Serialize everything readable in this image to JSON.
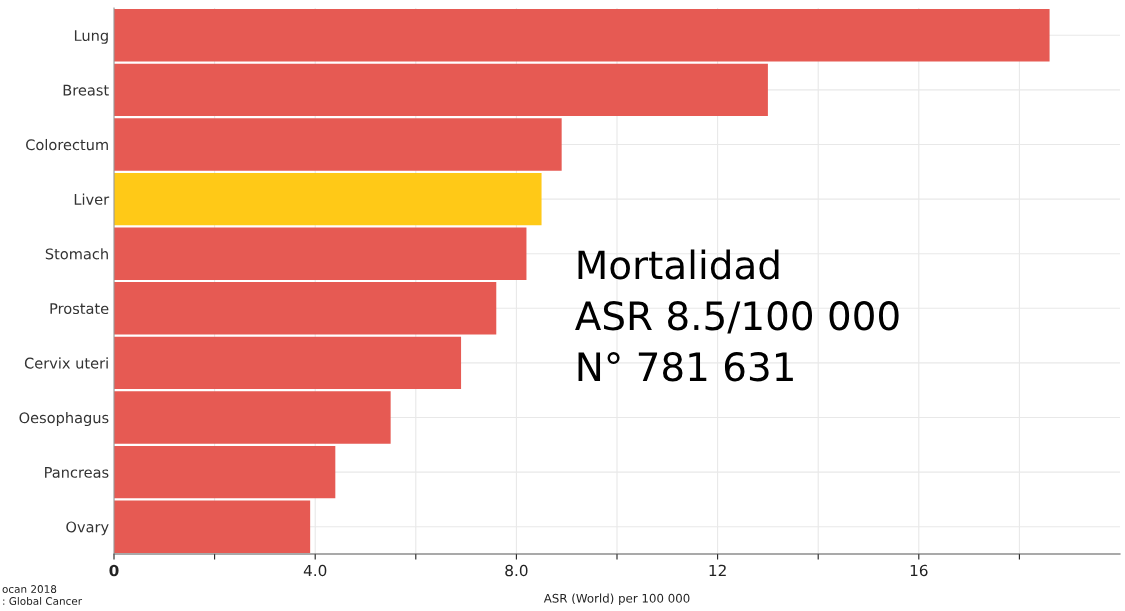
{
  "chart_data": {
    "type": "bar",
    "orientation": "horizontal",
    "xlabel": "ASR (World) per 100 000",
    "categories": [
      "Lung",
      "Breast",
      "Colorectum",
      "Liver",
      "Stomach",
      "Prostate",
      "Cervix uteri",
      "Oesophagus",
      "Pancreas",
      "Ovary"
    ],
    "values": [
      18.6,
      13.0,
      8.9,
      8.5,
      8.2,
      7.6,
      6.9,
      5.5,
      4.4,
      3.9
    ],
    "colors": [
      "#e65a53",
      "#e65a53",
      "#e65a53",
      "#ffc917",
      "#e65a53",
      "#e65a53",
      "#e65a53",
      "#e65a53",
      "#e65a53",
      "#e65a53"
    ],
    "xlim": [
      0,
      20
    ],
    "xticks": [
      0,
      {
        "value": 2,
        "label": null
      },
      {
        "value": 4,
        "label": "4.0"
      },
      {
        "value": 6,
        "label": null
      },
      {
        "value": 8,
        "label": "8.0"
      },
      {
        "value": 10,
        "label": null
      },
      12,
      {
        "value": 14,
        "label": null
      },
      16,
      {
        "value": 18,
        "label": null
      }
    ],
    "grid": true,
    "annotations": [
      "Mortalidad\nASR 8.5/100 000\nN° 781 631",
      "ocan 2018",
      ": Global Cancer"
    ]
  }
}
